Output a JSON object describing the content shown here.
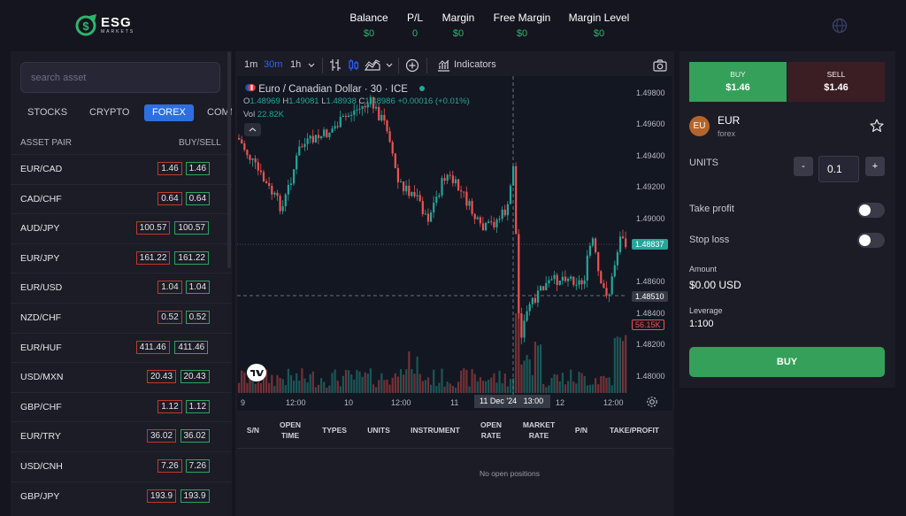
{
  "brand": {
    "name": "ESG",
    "tagline": "MARKETS"
  },
  "account": {
    "balance_label": "Balance",
    "balance": "$0",
    "pl_label": "P/L",
    "pl": "0",
    "margin_label": "Margin",
    "margin": "$0",
    "free_margin_label": "Free Margin",
    "free_margin": "$0",
    "margin_level_label": "Margin Level",
    "margin_level": "$0"
  },
  "sidebar": {
    "search_placeholder": "search asset",
    "categories": [
      "STOCKS",
      "CRYPTO",
      "FOREX",
      "COMM"
    ],
    "active_category": "FOREX",
    "col_pair": "ASSET PAIR",
    "col_buysell": "BUY/SELL",
    "pairs": [
      {
        "name": "EUR/CAD",
        "bid": "1.46",
        "ask": "1.46"
      },
      {
        "name": "CAD/CHF",
        "bid": "0.64",
        "ask": "0.64"
      },
      {
        "name": "AUD/JPY",
        "bid": "100.57",
        "ask": "100.57"
      },
      {
        "name": "EUR/JPY",
        "bid": "161.22",
        "ask": "161.22"
      },
      {
        "name": "EUR/USD",
        "bid": "1.04",
        "ask": "1.04"
      },
      {
        "name": "NZD/CHF",
        "bid": "0.52",
        "ask": "0.52"
      },
      {
        "name": "EUR/HUF",
        "bid": "411.46",
        "ask": "411.46"
      },
      {
        "name": "USD/MXN",
        "bid": "20.43",
        "ask": "20.43"
      },
      {
        "name": "GBP/CHF",
        "bid": "1.12",
        "ask": "1.12"
      },
      {
        "name": "EUR/TRY",
        "bid": "36.02",
        "ask": "36.02"
      },
      {
        "name": "USD/CNH",
        "bid": "7.26",
        "ask": "7.26"
      },
      {
        "name": "GBP/JPY",
        "bid": "193.9",
        "ask": "193.9"
      }
    ]
  },
  "chart": {
    "intervals": [
      "1m",
      "30m",
      "1h"
    ],
    "active_interval": "30m",
    "indicators_label": "Indicators",
    "symbol_title": "Euro / Canadian Dollar · 30 · ICE",
    "ohlc": {
      "o_label": "O",
      "o": "1.48969",
      "h_label": "H",
      "h": "1.49081",
      "l_label": "L",
      "l": "1.48938",
      "c_label": "C",
      "c": "1.48986",
      "change": "+0.00016 (+0.01%)"
    },
    "volume_label": "Vol",
    "volume": "22.82K",
    "y_ticks": [
      "1.49800",
      "1.49600",
      "1.49400",
      "1.49200",
      "1.49000",
      "1.48600",
      "1.48400",
      "1.48200",
      "1.48000"
    ],
    "price_tag": "1.48837",
    "crosshair_tag": "1.48510",
    "volume_tag": "56.15K",
    "x_ticks": [
      "9",
      "12:00",
      "10",
      "12:00",
      "11",
      "12",
      "12:00"
    ],
    "crosshair_time": "11 Dec '24",
    "crosshair_clock": "13:00",
    "colors": {
      "up": "#26a69a",
      "down": "#ef5350"
    }
  },
  "positions": {
    "columns": [
      "S/N",
      "OPEN TIME",
      "TYPES",
      "UNITS",
      "INSTRUMENT",
      "OPEN RATE",
      "MARKET RATE",
      "P/N",
      "TAKE/PROFIT"
    ],
    "empty_text": "No open positions"
  },
  "trade": {
    "buy_label": "BUY",
    "buy_price": "$1.46",
    "sell_label": "SELL",
    "sell_price": "$1.46",
    "asset_code": "EU",
    "asset_name": "EUR",
    "asset_type": "forex",
    "units_label": "UNITS",
    "units_value": "0.1",
    "minus": "-",
    "plus": "+",
    "take_profit_label": "Take profit",
    "take_profit_on": false,
    "stop_loss_label": "Stop loss",
    "stop_loss_on": false,
    "amount_label": "Amount",
    "amount": "$0.00 USD",
    "leverage_label": "Leverage",
    "leverage": "1:100",
    "submit_label": "BUY"
  }
}
